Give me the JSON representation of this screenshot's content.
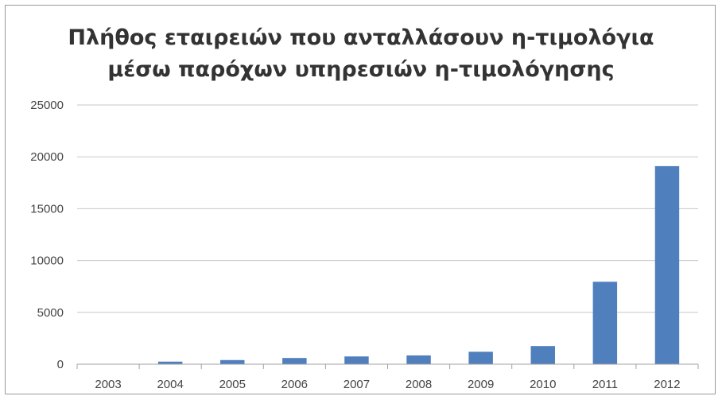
{
  "chart_data": {
    "type": "bar",
    "title": "Πλήθος εταιρειών που ανταλλάσουν η-τιμολόγια μέσω παρόχων υπηρεσιών η-τιμολόγησης",
    "title_lines": [
      "Πλήθος εταιρειών που ανταλλάσουν η-τιμολόγια",
      "μέσω παρόχων υπηρεσιών η-τιμολόγησης"
    ],
    "xlabel": "",
    "ylabel": "",
    "categories": [
      "2003",
      "2004",
      "2005",
      "2006",
      "2007",
      "2008",
      "2009",
      "2010",
      "2011",
      "2012"
    ],
    "values": [
      10,
      250,
      400,
      600,
      750,
      850,
      1200,
      1750,
      7950,
      19100
    ],
    "ylim": [
      0,
      25000
    ],
    "yticks": [
      0,
      5000,
      10000,
      15000,
      20000,
      25000
    ],
    "grid": true,
    "legend": "none",
    "bar_color": "#4f7fbd"
  }
}
